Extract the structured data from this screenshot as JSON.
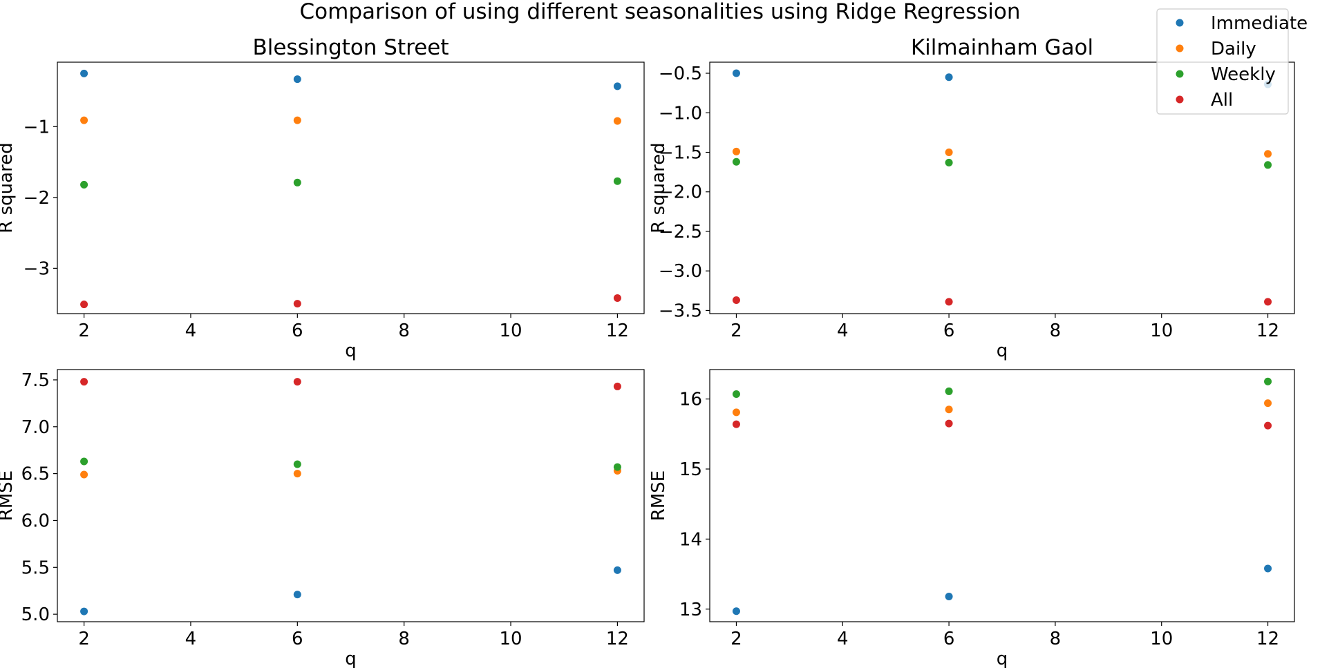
{
  "figure": {
    "title": "Comparison of using different seasonalities using Ridge Regression"
  },
  "legend": {
    "placement": "upper right",
    "entries": [
      {
        "label": "Immediate",
        "color": "#1f77b4"
      },
      {
        "label": "Daily",
        "color": "#ff7f0e"
      },
      {
        "label": "Weekly",
        "color": "#2ca02c"
      },
      {
        "label": "All",
        "color": "#d62728"
      }
    ]
  },
  "chart_data": [
    {
      "type": "scatter",
      "title": "Blessington Street",
      "xlabel": "q",
      "ylabel": "R squared",
      "xlim": [
        1.5,
        12.5
      ],
      "ylim": [
        -3.64,
        -0.09
      ],
      "xticks": [
        2,
        4,
        6,
        8,
        10,
        12
      ],
      "xtick_labels": [
        "2",
        "4",
        "6",
        "8",
        "10",
        "12"
      ],
      "yticks": [
        -1,
        -2,
        -3
      ],
      "ytick_labels": [
        "−1",
        "−2",
        "−3"
      ],
      "x": [
        2,
        6,
        12
      ],
      "series": [
        {
          "name": "Immediate",
          "values": [
            -0.25,
            -0.33,
            -0.43
          ]
        },
        {
          "name": "Daily",
          "values": [
            -0.91,
            -0.91,
            -0.92
          ]
        },
        {
          "name": "Weekly",
          "values": [
            -1.82,
            -1.79,
            -1.77
          ]
        },
        {
          "name": "All",
          "values": [
            -3.51,
            -3.5,
            -3.42
          ]
        }
      ],
      "grid": false
    },
    {
      "type": "scatter",
      "title": "Kilmainham Gaol",
      "xlabel": "q",
      "ylabel": "R squared",
      "xlim": [
        1.5,
        12.5
      ],
      "ylim": [
        -3.54,
        -0.36
      ],
      "xticks": [
        2,
        4,
        6,
        8,
        10,
        12
      ],
      "xtick_labels": [
        "2",
        "4",
        "6",
        "8",
        "10",
        "12"
      ],
      "yticks": [
        -0.5,
        -1.0,
        -1.5,
        -2.0,
        -2.5,
        -3.0,
        -3.5
      ],
      "ytick_labels": [
        "−0.5",
        "−1.0",
        "−1.5",
        "−2.0",
        "−2.5",
        "−3.0",
        "−3.5"
      ],
      "x": [
        2,
        6,
        12
      ],
      "series": [
        {
          "name": "Immediate",
          "values": [
            -0.5,
            -0.55,
            -0.64
          ]
        },
        {
          "name": "Daily",
          "values": [
            -1.49,
            -1.5,
            -1.52
          ]
        },
        {
          "name": "Weekly",
          "values": [
            -1.62,
            -1.63,
            -1.66
          ]
        },
        {
          "name": "All",
          "values": [
            -3.37,
            -3.39,
            -3.39
          ]
        }
      ],
      "grid": false
    },
    {
      "type": "scatter",
      "title": "",
      "xlabel": "q",
      "ylabel": "RMSE",
      "xlim": [
        1.5,
        12.5
      ],
      "ylim": [
        4.92,
        7.61
      ],
      "xticks": [
        2,
        4,
        6,
        8,
        10,
        12
      ],
      "xtick_labels": [
        "2",
        "4",
        "6",
        "8",
        "10",
        "12"
      ],
      "yticks": [
        5.0,
        5.5,
        6.0,
        6.5,
        7.0,
        7.5
      ],
      "ytick_labels": [
        "5.0",
        "5.5",
        "6.0",
        "6.5",
        "7.0",
        "7.5"
      ],
      "x": [
        2,
        6,
        12
      ],
      "series": [
        {
          "name": "Immediate",
          "values": [
            5.03,
            5.21,
            5.47
          ]
        },
        {
          "name": "Daily",
          "values": [
            6.49,
            6.5,
            6.53
          ]
        },
        {
          "name": "Weekly",
          "values": [
            6.63,
            6.6,
            6.57
          ]
        },
        {
          "name": "All",
          "values": [
            7.48,
            7.48,
            7.43
          ]
        }
      ],
      "grid": false
    },
    {
      "type": "scatter",
      "title": "",
      "xlabel": "q",
      "ylabel": "RMSE",
      "xlim": [
        1.5,
        12.5
      ],
      "ylim": [
        12.82,
        16.42
      ],
      "xticks": [
        2,
        4,
        6,
        8,
        10,
        12
      ],
      "xtick_labels": [
        "2",
        "4",
        "6",
        "8",
        "10",
        "12"
      ],
      "yticks": [
        13,
        14,
        15,
        16
      ],
      "ytick_labels": [
        "13",
        "14",
        "15",
        "16"
      ],
      "x": [
        2,
        6,
        12
      ],
      "series": [
        {
          "name": "Immediate",
          "values": [
            12.97,
            13.18,
            13.58
          ]
        },
        {
          "name": "Daily",
          "values": [
            15.81,
            15.85,
            15.94
          ]
        },
        {
          "name": "Weekly",
          "values": [
            16.07,
            16.11,
            16.25
          ]
        },
        {
          "name": "All",
          "values": [
            15.64,
            15.65,
            15.62
          ]
        }
      ],
      "grid": false
    }
  ]
}
